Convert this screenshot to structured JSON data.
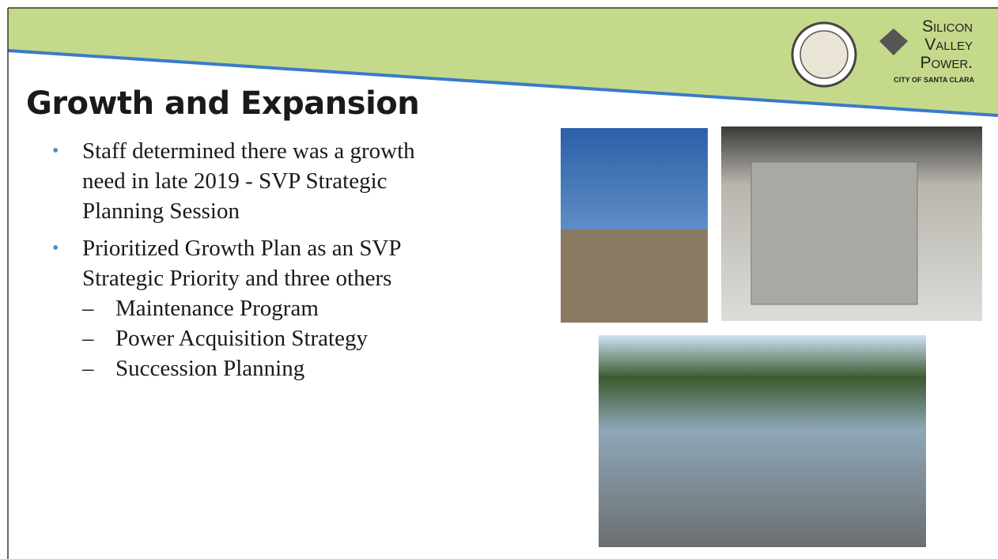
{
  "header": {
    "logo": {
      "lines": [
        "Silicon",
        "Valley",
        "Power."
      ],
      "subtitle": "CITY OF SANTA CLARA"
    }
  },
  "title": "Growth and Expansion",
  "bullets": [
    {
      "lines": [
        "Staff determined there was a growth",
        "need in late 2019 - SVP Strategic",
        "Planning Session"
      ]
    },
    {
      "lines": [
        "Prioritized Growth Plan as an SVP",
        "Strategic Priority  and three others"
      ],
      "sub": [
        "Maintenance Program",
        "Power Acquisition Strategy",
        "Succession Planning"
      ]
    }
  ]
}
